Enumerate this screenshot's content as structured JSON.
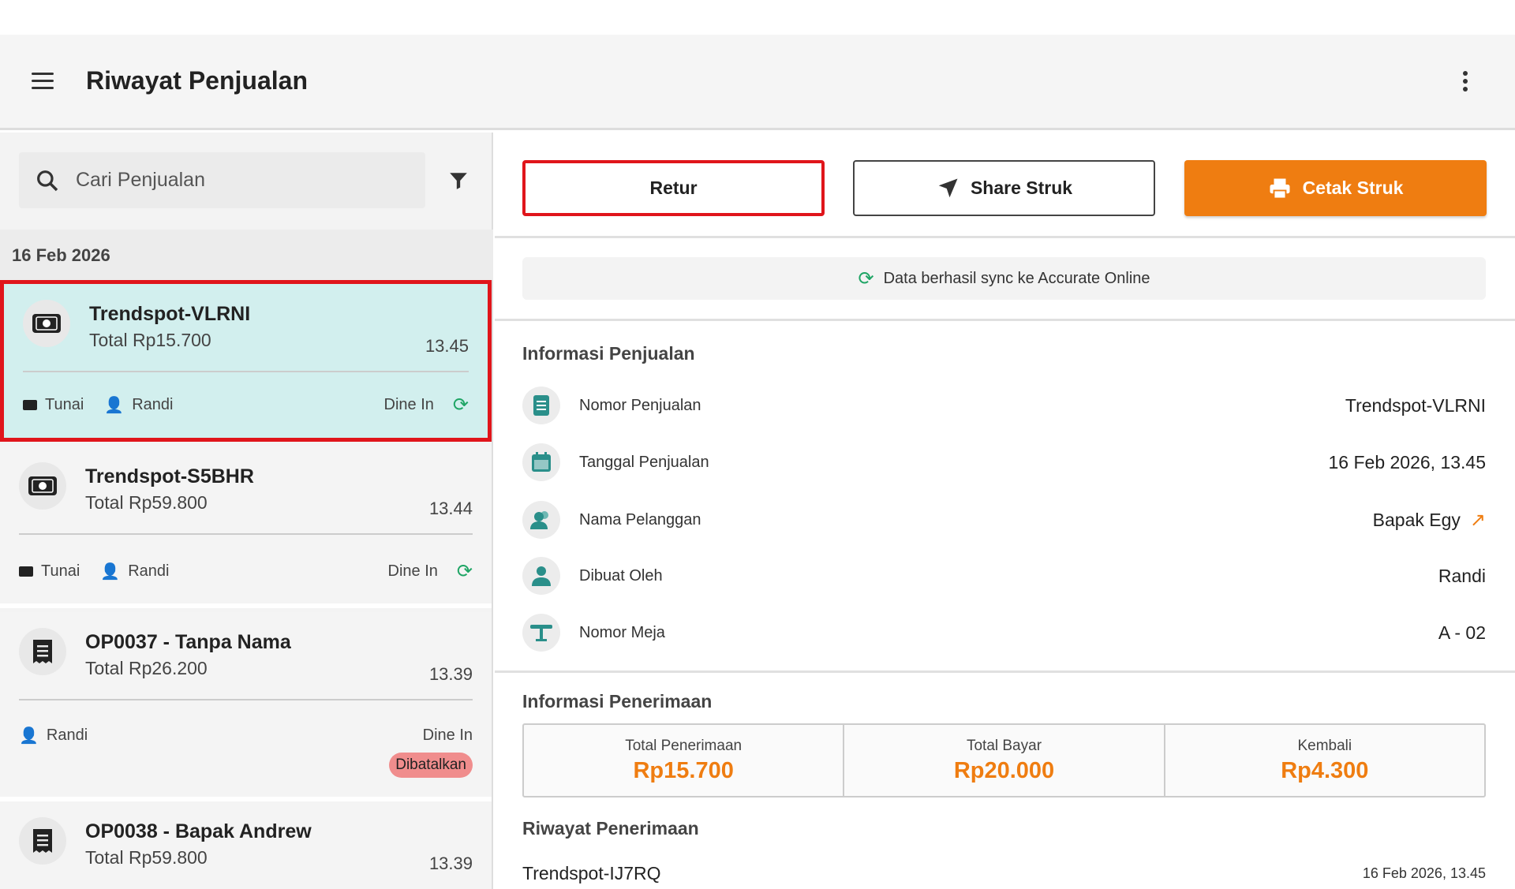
{
  "header": {
    "title": "Riwayat Penjualan"
  },
  "search": {
    "placeholder": "Cari Penjualan"
  },
  "list": {
    "date_group": "16 Feb 2026",
    "items": [
      {
        "name": "Trendspot-VLRNI",
        "total": "Total Rp15.700",
        "time": "13.45",
        "payment": "Tunai",
        "user": "Randi",
        "type": "Dine In",
        "synced": true,
        "selected": true
      },
      {
        "name": "Trendspot-S5BHR",
        "total": "Total Rp59.800",
        "time": "13.44",
        "payment": "Tunai",
        "user": "Randi",
        "type": "Dine In",
        "synced": true
      },
      {
        "name": "OP0037 - Tanpa Nama",
        "total": "Total Rp26.200",
        "time": "13.39",
        "user": "Randi",
        "type": "Dine In",
        "status": "Dibatalkan"
      },
      {
        "name": "OP0038 - Bapak Andrew",
        "total": "Total Rp59.800",
        "time": "13.39"
      }
    ]
  },
  "actions": {
    "retur": "Retur",
    "share": "Share Struk",
    "cetak": "Cetak Struk"
  },
  "sync_message": "Data berhasil sync ke Accurate Online",
  "info": {
    "title": "Informasi Penjualan",
    "rows": [
      {
        "label": "Nomor Penjualan",
        "value": "Trendspot-VLRNI",
        "icon": "receipt-icon"
      },
      {
        "label": "Tanggal Penjualan",
        "value": "16 Feb 2026, 13.45",
        "icon": "calendar-icon"
      },
      {
        "label": "Nama Pelanggan",
        "value": "Bapak Egy",
        "icon": "users-icon"
      },
      {
        "label": "Dibuat Oleh",
        "value": "Randi",
        "icon": "user-icon"
      },
      {
        "label": "Nomor Meja",
        "value": "A - 02",
        "icon": "table-icon"
      }
    ]
  },
  "payment": {
    "title": "Informasi Penerimaan",
    "cells": [
      {
        "label": "Total Penerimaan",
        "value": "Rp15.700"
      },
      {
        "label": "Total Bayar",
        "value": "Rp20.000"
      },
      {
        "label": "Kembali",
        "value": "Rp4.300"
      }
    ]
  },
  "history": {
    "title": "Riwayat Penerimaan",
    "items": [
      {
        "name": "Trendspot-IJ7RQ",
        "date": "16 Feb 2026, 13.45"
      }
    ]
  },
  "colors": {
    "accent": "#ef7d11",
    "selected_bg": "#d2efee",
    "highlight": "#e0151b",
    "sync": "#1fa565",
    "icon_teal": "#2a8f8a"
  }
}
